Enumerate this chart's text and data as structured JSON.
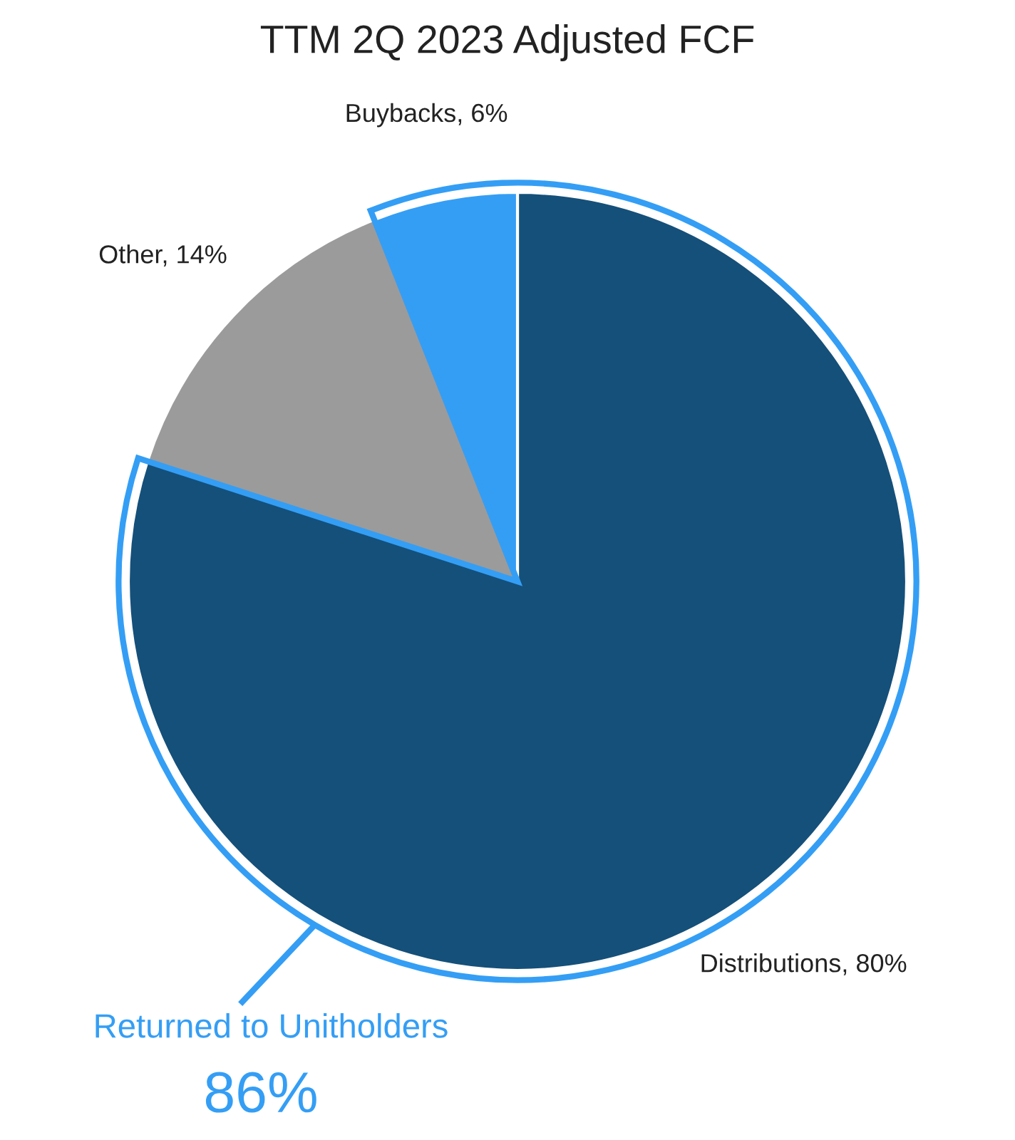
{
  "chart_data": {
    "type": "pie",
    "title": "TTM 2Q 2023 Adjusted FCF",
    "categories": [
      "Distributions",
      "Other",
      "Buybacks"
    ],
    "values": [
      80,
      14,
      6
    ],
    "value_labels": [
      "80%",
      "14%",
      "6%"
    ],
    "colors": [
      "#14507a",
      "#9b9b9b",
      "#349ef5"
    ],
    "annotations": [
      "Returned to Unitholders",
      "86%"
    ],
    "legend": false
  }
}
